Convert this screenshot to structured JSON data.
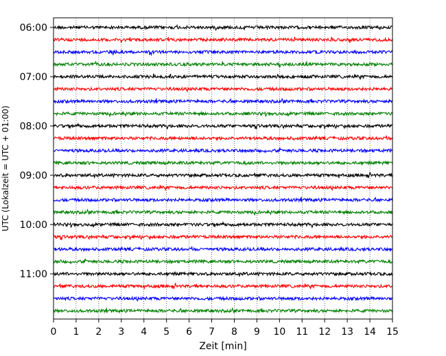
{
  "chart_data": {
    "type": "line",
    "title": "",
    "xlabel": "Zeit  [min]",
    "ylabel": "UTC (Lokalzeit = UTC + 01:00)",
    "xlim": [
      0,
      15
    ],
    "x_ticks": [
      0,
      1,
      2,
      3,
      4,
      5,
      6,
      7,
      8,
      9,
      10,
      11,
      12,
      13,
      14,
      15
    ],
    "y_ticks": [
      {
        "label": "06:00",
        "row": 0
      },
      {
        "label": "07:00",
        "row": 4
      },
      {
        "label": "08:00",
        "row": 8
      },
      {
        "label": "09:00",
        "row": 12
      },
      {
        "label": "10:00",
        "row": 16
      },
      {
        "label": "11:00",
        "row": 20
      }
    ],
    "grid_x": true,
    "grid_style": "dotted",
    "start_time": "06:00",
    "row_minutes": 15,
    "row_count": 24,
    "trace_colors": [
      "#000000",
      "#ff0000",
      "#0000ff",
      "#008000"
    ],
    "noise_amplitude_rows": 0.12
  }
}
